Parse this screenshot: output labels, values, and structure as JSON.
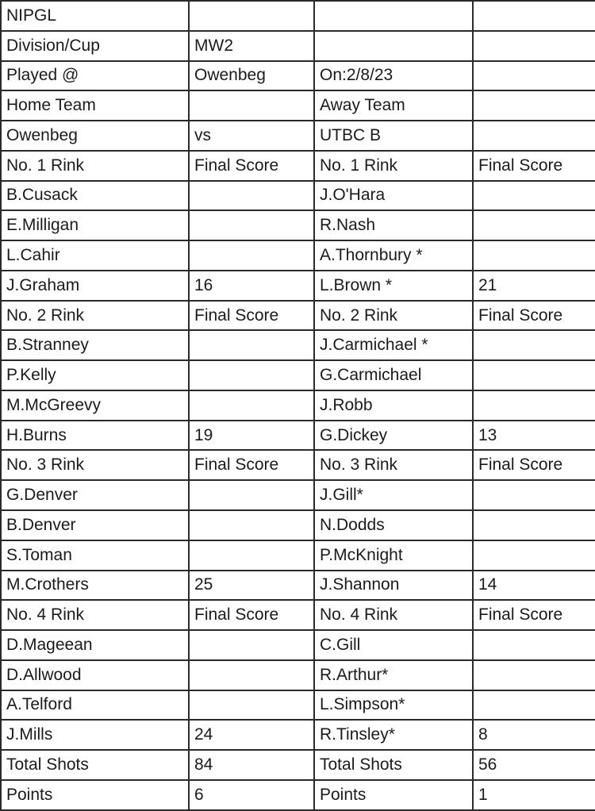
{
  "colors": {
    "green": "#d8e4bc",
    "gray": "#d9d9d9",
    "orange": "#fad1ac",
    "blue": "#c4d8ef",
    "border": "#2a2a2a"
  },
  "table": {
    "rows": [
      {
        "cells": [
          {
            "name": "cell-league-name",
            "text": "NIPGL"
          },
          {
            "name": "cell-empty",
            "text": ""
          },
          {
            "name": "cell-empty",
            "text": ""
          },
          {
            "name": "cell-empty",
            "text": ""
          }
        ]
      },
      {
        "cells": [
          {
            "name": "cell-division-label",
            "text": "Division/Cup"
          },
          {
            "name": "cell-division-value",
            "text": "MW2"
          },
          {
            "name": "cell-empty",
            "text": ""
          },
          {
            "name": "cell-empty",
            "text": ""
          }
        ]
      },
      {
        "cells": [
          {
            "name": "cell-venue-label",
            "text": "Played @"
          },
          {
            "name": "cell-venue-value",
            "text": "Owenbeg"
          },
          {
            "name": "cell-date-value",
            "text": "On:2/8/23"
          },
          {
            "name": "cell-empty",
            "text": ""
          }
        ]
      },
      {
        "cells": [
          {
            "name": "cell-home-team-label",
            "text": "Home Team"
          },
          {
            "name": "cell-empty",
            "text": ""
          },
          {
            "name": "cell-away-team-label",
            "text": "Away Team"
          },
          {
            "name": "cell-empty",
            "text": ""
          }
        ]
      },
      {
        "cells": [
          {
            "name": "cell-home-team-name",
            "text": "Owenbeg",
            "bg": "green"
          },
          {
            "name": "cell-vs-label",
            "text": "vs"
          },
          {
            "name": "cell-away-team-name",
            "text": "UTBC B",
            "bg": "green"
          },
          {
            "name": "cell-empty",
            "text": ""
          }
        ]
      },
      {
        "cells": [
          {
            "name": "cell-rink1-home-header",
            "text": "No. 1 Rink",
            "bg": "gray"
          },
          {
            "name": "cell-final-score-header",
            "text": "Final Score",
            "bg": "gray"
          },
          {
            "name": "cell-rink1-away-header",
            "text": "No. 1 Rink",
            "bg": "gray"
          },
          {
            "name": "cell-final-score-header",
            "text": "Final Score",
            "bg": "gray"
          }
        ]
      },
      {
        "cells": [
          {
            "name": "cell-player-name",
            "text": "B.Cusack"
          },
          {
            "name": "cell-empty",
            "text": ""
          },
          {
            "name": "cell-player-name",
            "text": "J.O'Hara"
          },
          {
            "name": "cell-empty",
            "text": ""
          }
        ]
      },
      {
        "cells": [
          {
            "name": "cell-player-name",
            "text": "E.Milligan"
          },
          {
            "name": "cell-empty",
            "text": ""
          },
          {
            "name": "cell-player-name",
            "text": "R.Nash"
          },
          {
            "name": "cell-empty",
            "text": ""
          }
        ]
      },
      {
        "cells": [
          {
            "name": "cell-player-name",
            "text": "L.Cahir"
          },
          {
            "name": "cell-empty",
            "text": ""
          },
          {
            "name": "cell-player-name",
            "text": "A.Thornbury *"
          },
          {
            "name": "cell-empty",
            "text": ""
          }
        ]
      },
      {
        "cells": [
          {
            "name": "cell-skip-name",
            "text": "J.Graham"
          },
          {
            "name": "cell-rink1-home-score",
            "text": "16",
            "bg": "green",
            "align": "right"
          },
          {
            "name": "cell-skip-name",
            "text": "L.Brown *"
          },
          {
            "name": "cell-rink1-away-score",
            "text": "21",
            "bg": "green",
            "align": "right"
          }
        ]
      },
      {
        "cells": [
          {
            "name": "cell-rink2-home-header",
            "text": "No. 2 Rink",
            "bg": "gray"
          },
          {
            "name": "cell-final-score-header",
            "text": "Final Score",
            "bg": "gray"
          },
          {
            "name": "cell-rink2-away-header",
            "text": "No. 2 Rink",
            "bg": "gray"
          },
          {
            "name": "cell-final-score-header",
            "text": "Final Score",
            "bg": "gray"
          }
        ]
      },
      {
        "cells": [
          {
            "name": "cell-player-name",
            "text": "B.Stranney"
          },
          {
            "name": "cell-empty",
            "text": ""
          },
          {
            "name": "cell-player-name",
            "text": "J.Carmichael *"
          },
          {
            "name": "cell-empty",
            "text": ""
          }
        ]
      },
      {
        "cells": [
          {
            "name": "cell-player-name",
            "text": "P.Kelly"
          },
          {
            "name": "cell-empty",
            "text": ""
          },
          {
            "name": "cell-player-name",
            "text": "G.Carmichael"
          },
          {
            "name": "cell-empty",
            "text": ""
          }
        ]
      },
      {
        "cells": [
          {
            "name": "cell-player-name",
            "text": "M.McGreevy"
          },
          {
            "name": "cell-empty",
            "text": ""
          },
          {
            "name": "cell-player-name",
            "text": "J.Robb"
          },
          {
            "name": "cell-empty",
            "text": ""
          }
        ]
      },
      {
        "cells": [
          {
            "name": "cell-skip-name",
            "text": "H.Burns"
          },
          {
            "name": "cell-rink2-home-score",
            "text": "19",
            "bg": "green",
            "align": "right"
          },
          {
            "name": "cell-skip-name",
            "text": "G.Dickey"
          },
          {
            "name": "cell-rink2-away-score",
            "text": "13",
            "bg": "green",
            "align": "right"
          }
        ]
      },
      {
        "cells": [
          {
            "name": "cell-rink3-home-header",
            "text": "No. 3 Rink",
            "bg": "gray"
          },
          {
            "name": "cell-final-score-header",
            "text": "Final Score",
            "bg": "gray"
          },
          {
            "name": "cell-rink3-away-header",
            "text": "No. 3 Rink",
            "bg": "gray"
          },
          {
            "name": "cell-final-score-header",
            "text": "Final Score",
            "bg": "gray"
          }
        ]
      },
      {
        "cells": [
          {
            "name": "cell-player-name",
            "text": "G.Denver"
          },
          {
            "name": "cell-empty",
            "text": ""
          },
          {
            "name": "cell-player-name",
            "text": "J.Gill*"
          },
          {
            "name": "cell-empty",
            "text": ""
          }
        ]
      },
      {
        "cells": [
          {
            "name": "cell-player-name",
            "text": "B.Denver"
          },
          {
            "name": "cell-empty",
            "text": ""
          },
          {
            "name": "cell-player-name",
            "text": "N.Dodds"
          },
          {
            "name": "cell-empty",
            "text": ""
          }
        ]
      },
      {
        "cells": [
          {
            "name": "cell-player-name",
            "text": "S.Toman"
          },
          {
            "name": "cell-empty",
            "text": ""
          },
          {
            "name": "cell-player-name",
            "text": "P.McKnight"
          },
          {
            "name": "cell-empty",
            "text": ""
          }
        ]
      },
      {
        "cells": [
          {
            "name": "cell-skip-name",
            "text": "M.Crothers"
          },
          {
            "name": "cell-rink3-home-score",
            "text": "25",
            "bg": "green",
            "align": "right"
          },
          {
            "name": "cell-skip-name",
            "text": "J.Shannon"
          },
          {
            "name": "cell-rink3-away-score",
            "text": "14",
            "bg": "green",
            "align": "right"
          }
        ]
      },
      {
        "cells": [
          {
            "name": "cell-rink4-home-header",
            "text": "No. 4 Rink",
            "bg": "gray"
          },
          {
            "name": "cell-final-score-header",
            "text": "Final Score",
            "bg": "gray"
          },
          {
            "name": "cell-rink4-away-header",
            "text": "No. 4 Rink",
            "bg": "gray"
          },
          {
            "name": "cell-final-score-header",
            "text": "Final Score",
            "bg": "gray"
          }
        ]
      },
      {
        "cells": [
          {
            "name": "cell-player-name",
            "text": "D.Mageean"
          },
          {
            "name": "cell-empty",
            "text": ""
          },
          {
            "name": "cell-player-name",
            "text": "C.Gill"
          },
          {
            "name": "cell-empty",
            "text": ""
          }
        ]
      },
      {
        "cells": [
          {
            "name": "cell-player-name",
            "text": "D.Allwood"
          },
          {
            "name": "cell-empty",
            "text": ""
          },
          {
            "name": "cell-player-name",
            "text": "R.Arthur*"
          },
          {
            "name": "cell-empty",
            "text": ""
          }
        ]
      },
      {
        "cells": [
          {
            "name": "cell-player-name",
            "text": "A.Telford"
          },
          {
            "name": "cell-empty",
            "text": ""
          },
          {
            "name": "cell-player-name",
            "text": "L.Simpson*"
          },
          {
            "name": "cell-empty",
            "text": ""
          }
        ]
      },
      {
        "cells": [
          {
            "name": "cell-skip-name",
            "text": "J.Mills"
          },
          {
            "name": "cell-rink4-home-score",
            "text": "24",
            "bg": "green",
            "align": "right"
          },
          {
            "name": "cell-skip-name",
            "text": "R.Tinsley*"
          },
          {
            "name": "cell-rink4-away-score",
            "text": "8",
            "bg": "green",
            "align": "right"
          }
        ]
      },
      {
        "cells": [
          {
            "name": "cell-total-shots-label",
            "text": "Total Shots",
            "bg": "orange"
          },
          {
            "name": "cell-total-shots-home-value",
            "text": "84",
            "bg": "orange",
            "align": "right"
          },
          {
            "name": "cell-total-shots-label",
            "text": "Total Shots",
            "bg": "orange"
          },
          {
            "name": "cell-total-shots-away-value",
            "text": "56",
            "bg": "orange",
            "align": "right"
          }
        ]
      },
      {
        "cells": [
          {
            "name": "cell-points-label",
            "text": "Points",
            "bg": "blue"
          },
          {
            "name": "cell-points-home-value",
            "text": "6",
            "bg": "blue",
            "align": "right"
          },
          {
            "name": "cell-points-label",
            "text": "Points",
            "bg": "blue"
          },
          {
            "name": "cell-points-away-value",
            "text": "1",
            "bg": "blue",
            "align": "right"
          }
        ]
      }
    ]
  }
}
